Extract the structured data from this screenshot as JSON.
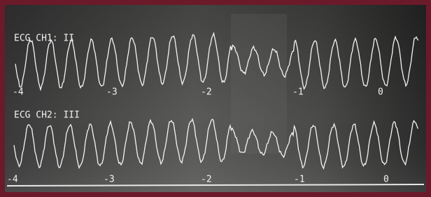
{
  "channels": [
    {
      "label": "ECG CH1:  II",
      "ticks": [
        -4,
        -3,
        -2,
        -1,
        0
      ]
    },
    {
      "label": "ECG CH2:  III",
      "ticks": [
        -4,
        -3,
        -2,
        -1,
        0
      ]
    }
  ]
}
